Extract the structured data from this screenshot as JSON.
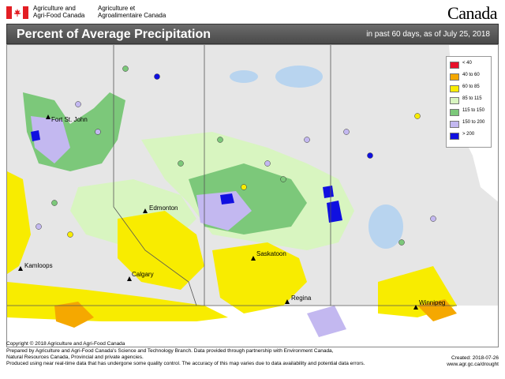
{
  "header": {
    "agency_en_1": "Agriculture and",
    "agency_en_2": "Agri-Food Canada",
    "agency_fr_1": "Agriculture et",
    "agency_fr_2": "Agroalimentaire Canada",
    "wordmark": "Canada"
  },
  "titlebar": {
    "title": "Percent of Average Precipitation",
    "subtitle": "in past 60 days, as of July 25, 2018"
  },
  "legend": {
    "items": [
      {
        "label": "< 40",
        "color": "#e8102a"
      },
      {
        "label": "40 to 60",
        "color": "#f5a800"
      },
      {
        "label": "60 to 85",
        "color": "#f8ec00"
      },
      {
        "label": "85 to 115",
        "color": "#d8f5c0"
      },
      {
        "label": "115 to 150",
        "color": "#7cc87a"
      },
      {
        "label": "150 to 200",
        "color": "#c3b8f0"
      },
      {
        "label": "> 200",
        "color": "#1010e0"
      }
    ]
  },
  "cities": [
    {
      "name": "Fort St. John"
    },
    {
      "name": "Edmonton"
    },
    {
      "name": "Kamloops"
    },
    {
      "name": "Calgary"
    },
    {
      "name": "Saskatoon"
    },
    {
      "name": "Regina"
    },
    {
      "name": "Winnipeg"
    }
  ],
  "footer": {
    "copyright": "Copyright © 2018 Agriculture and Agri-Food Canada",
    "line1": "Prepared by Agriculture and Agri-Food Canada's Science and Technology Branch. Data provided through partnership with Environment Canada,",
    "line2": "Natural Resources Canada, Provincial and private agencies.",
    "line3": "Produced using near real-time data that has undergone some quality control. The accuracy of this map varies due to data availability and potential data errors.",
    "created": "Created: 2018-07-26",
    "url": "www.agr.gc.ca/drought"
  },
  "colors": {
    "water": "#b8d4ef",
    "land_bg": "#e6e6e6"
  }
}
